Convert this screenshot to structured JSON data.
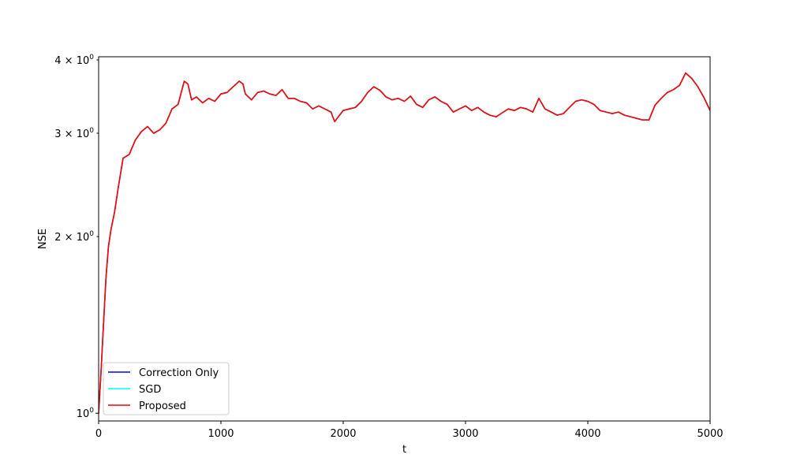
{
  "chart_data": {
    "type": "line",
    "title": "",
    "xlabel": "t",
    "ylabel": "NSE",
    "xlim": [
      0,
      5000
    ],
    "ylim": [
      0.97,
      4.05
    ],
    "yscale": "log",
    "grid": false,
    "legend_placement": "lower-left",
    "x_ticks": [
      0,
      1000,
      2000,
      3000,
      4000,
      5000
    ],
    "x_tick_labels": [
      "0",
      "1000",
      "2000",
      "3000",
      "4000",
      "5000"
    ],
    "y_ticks": [
      1,
      2,
      3,
      4
    ],
    "y_tick_labels": [
      {
        "mantissa": "",
        "base": "10",
        "exp": "0"
      },
      {
        "mantissa": "2 × ",
        "base": "10",
        "exp": "0"
      },
      {
        "mantissa": "3 × ",
        "base": "10",
        "exp": "0"
      },
      {
        "mantissa": "4 × ",
        "base": "10",
        "exp": "0"
      }
    ],
    "series": [
      {
        "name": "Correction Only",
        "color": "#0000ff",
        "x": [
          0,
          20,
          40,
          60,
          80,
          100,
          130,
          160,
          200,
          250,
          300,
          350,
          400,
          450,
          500,
          550,
          600,
          650,
          700,
          730,
          760,
          800,
          850,
          900,
          950,
          1000,
          1050,
          1100,
          1150,
          1180,
          1200,
          1250,
          1300,
          1350,
          1400,
          1450,
          1500,
          1550,
          1600,
          1650,
          1700,
          1750,
          1800,
          1850,
          1900,
          1930,
          1950,
          2000,
          2050,
          2100,
          2150,
          2200,
          2250,
          2300,
          2350,
          2400,
          2450,
          2500,
          2550,
          2600,
          2650,
          2700,
          2750,
          2800,
          2850,
          2900,
          2950,
          3000,
          3050,
          3100,
          3150,
          3200,
          3250,
          3300,
          3350,
          3400,
          3450,
          3500,
          3550,
          3600,
          3650,
          3700,
          3750,
          3800,
          3850,
          3900,
          3950,
          4000,
          4050,
          4100,
          4150,
          4200,
          4250,
          4300,
          4350,
          4400,
          4450,
          4500,
          4550,
          4600,
          4650,
          4700,
          4750,
          4800,
          4850,
          4900,
          4950,
          5000
        ],
        "y": [
          1.0,
          1.18,
          1.42,
          1.7,
          1.92,
          2.05,
          2.2,
          2.42,
          2.72,
          2.76,
          2.92,
          3.02,
          3.08,
          3.0,
          3.04,
          3.12,
          3.3,
          3.36,
          3.68,
          3.64,
          3.42,
          3.46,
          3.38,
          3.44,
          3.4,
          3.5,
          3.52,
          3.6,
          3.68,
          3.64,
          3.5,
          3.42,
          3.52,
          3.54,
          3.5,
          3.48,
          3.56,
          3.44,
          3.44,
          3.4,
          3.38,
          3.3,
          3.34,
          3.3,
          3.26,
          3.14,
          3.18,
          3.28,
          3.3,
          3.32,
          3.4,
          3.52,
          3.6,
          3.55,
          3.46,
          3.42,
          3.44,
          3.4,
          3.47,
          3.36,
          3.32,
          3.42,
          3.46,
          3.4,
          3.36,
          3.26,
          3.3,
          3.34,
          3.28,
          3.32,
          3.26,
          3.22,
          3.2,
          3.25,
          3.3,
          3.28,
          3.32,
          3.3,
          3.26,
          3.44,
          3.3,
          3.26,
          3.22,
          3.24,
          3.32,
          3.4,
          3.42,
          3.4,
          3.36,
          3.28,
          3.26,
          3.24,
          3.26,
          3.22,
          3.2,
          3.18,
          3.16,
          3.16,
          3.35,
          3.44,
          3.52,
          3.56,
          3.62,
          3.8,
          3.72,
          3.6,
          3.45,
          3.28
        ]
      },
      {
        "name": "SGD",
        "color": "#00ffff",
        "x": [
          0,
          20,
          40,
          60,
          80,
          100,
          130,
          160,
          200,
          250,
          300,
          350,
          400,
          450,
          500,
          550,
          600,
          650,
          700,
          730,
          760,
          800,
          850,
          900,
          950,
          1000,
          1050,
          1100,
          1150,
          1180,
          1200,
          1250,
          1300,
          1350,
          1400,
          1450,
          1500,
          1550,
          1600,
          1650,
          1700,
          1750,
          1800,
          1850,
          1900,
          1930,
          1950,
          2000,
          2050,
          2100,
          2150,
          2200,
          2250,
          2300,
          2350,
          2400,
          2450,
          2500,
          2550,
          2600,
          2650,
          2700,
          2750,
          2800,
          2850,
          2900,
          2950,
          3000,
          3050,
          3100,
          3150,
          3200,
          3250,
          3300,
          3350,
          3400,
          3450,
          3500,
          3550,
          3600,
          3650,
          3700,
          3750,
          3800,
          3850,
          3900,
          3950,
          4000,
          4050,
          4100,
          4150,
          4200,
          4250,
          4300,
          4350,
          4400,
          4450,
          4500,
          4550,
          4600,
          4650,
          4700,
          4750,
          4800,
          4850,
          4900,
          4950,
          5000
        ],
        "y": [
          1.0,
          1.18,
          1.42,
          1.7,
          1.92,
          2.05,
          2.2,
          2.42,
          2.72,
          2.76,
          2.92,
          3.02,
          3.08,
          3.0,
          3.04,
          3.12,
          3.3,
          3.36,
          3.68,
          3.64,
          3.42,
          3.46,
          3.38,
          3.44,
          3.4,
          3.5,
          3.52,
          3.6,
          3.68,
          3.64,
          3.5,
          3.42,
          3.52,
          3.54,
          3.5,
          3.48,
          3.56,
          3.44,
          3.44,
          3.4,
          3.38,
          3.3,
          3.34,
          3.3,
          3.26,
          3.14,
          3.18,
          3.28,
          3.3,
          3.32,
          3.4,
          3.52,
          3.6,
          3.55,
          3.46,
          3.42,
          3.44,
          3.4,
          3.47,
          3.36,
          3.32,
          3.42,
          3.46,
          3.4,
          3.36,
          3.26,
          3.3,
          3.34,
          3.28,
          3.32,
          3.26,
          3.22,
          3.2,
          3.25,
          3.3,
          3.28,
          3.32,
          3.3,
          3.26,
          3.44,
          3.3,
          3.26,
          3.22,
          3.24,
          3.32,
          3.4,
          3.42,
          3.4,
          3.36,
          3.28,
          3.26,
          3.24,
          3.26,
          3.22,
          3.2,
          3.18,
          3.16,
          3.16,
          3.35,
          3.44,
          3.52,
          3.56,
          3.62,
          3.8,
          3.72,
          3.6,
          3.45,
          3.28
        ]
      },
      {
        "name": "Proposed",
        "color": "#ff0000",
        "x": [
          0,
          20,
          40,
          60,
          80,
          100,
          130,
          160,
          200,
          250,
          300,
          350,
          400,
          450,
          500,
          550,
          600,
          650,
          700,
          730,
          760,
          800,
          850,
          900,
          950,
          1000,
          1050,
          1100,
          1150,
          1180,
          1200,
          1250,
          1300,
          1350,
          1400,
          1450,
          1500,
          1550,
          1600,
          1650,
          1700,
          1750,
          1800,
          1850,
          1900,
          1930,
          1950,
          2000,
          2050,
          2100,
          2150,
          2200,
          2250,
          2300,
          2350,
          2400,
          2450,
          2500,
          2550,
          2600,
          2650,
          2700,
          2750,
          2800,
          2850,
          2900,
          2950,
          3000,
          3050,
          3100,
          3150,
          3200,
          3250,
          3300,
          3350,
          3400,
          3450,
          3500,
          3550,
          3600,
          3650,
          3700,
          3750,
          3800,
          3850,
          3900,
          3950,
          4000,
          4050,
          4100,
          4150,
          4200,
          4250,
          4300,
          4350,
          4400,
          4450,
          4500,
          4550,
          4600,
          4650,
          4700,
          4750,
          4800,
          4850,
          4900,
          4950,
          5000
        ],
        "y": [
          1.0,
          1.18,
          1.42,
          1.7,
          1.92,
          2.05,
          2.2,
          2.42,
          2.72,
          2.76,
          2.92,
          3.02,
          3.08,
          3.0,
          3.04,
          3.12,
          3.3,
          3.36,
          3.68,
          3.64,
          3.42,
          3.46,
          3.38,
          3.44,
          3.4,
          3.5,
          3.52,
          3.6,
          3.68,
          3.64,
          3.5,
          3.42,
          3.52,
          3.54,
          3.5,
          3.48,
          3.56,
          3.44,
          3.44,
          3.4,
          3.38,
          3.3,
          3.34,
          3.3,
          3.26,
          3.14,
          3.18,
          3.28,
          3.3,
          3.32,
          3.4,
          3.52,
          3.6,
          3.55,
          3.46,
          3.42,
          3.44,
          3.4,
          3.47,
          3.36,
          3.32,
          3.42,
          3.46,
          3.4,
          3.36,
          3.26,
          3.3,
          3.34,
          3.28,
          3.32,
          3.26,
          3.22,
          3.2,
          3.25,
          3.3,
          3.28,
          3.32,
          3.3,
          3.26,
          3.44,
          3.3,
          3.26,
          3.22,
          3.24,
          3.32,
          3.4,
          3.42,
          3.4,
          3.36,
          3.28,
          3.26,
          3.24,
          3.26,
          3.22,
          3.2,
          3.18,
          3.16,
          3.16,
          3.35,
          3.44,
          3.52,
          3.56,
          3.62,
          3.8,
          3.72,
          3.6,
          3.45,
          3.28
        ]
      }
    ]
  }
}
